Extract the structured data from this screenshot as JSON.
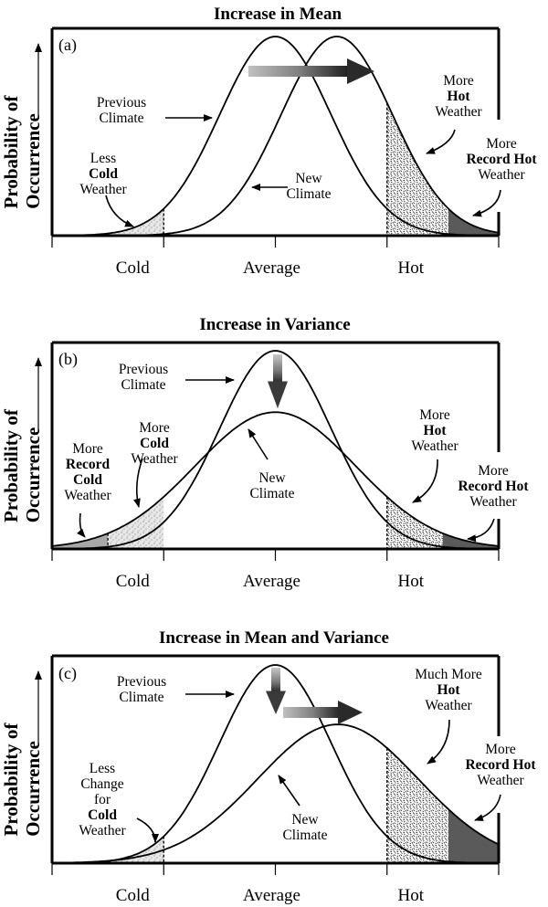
{
  "chart_data": [
    {
      "type": "line",
      "panel": "(a)",
      "title": "Increase in Mean",
      "xlabel": "",
      "ylabel": "Probability of Occurrence",
      "x_ticks": [
        "Cold",
        "Average",
        "Hot"
      ],
      "x_tick_values": [
        -1,
        0,
        1
      ],
      "xlim": [
        -2,
        2
      ],
      "series": [
        {
          "name": "Previous Climate",
          "mean": 0,
          "std": 0.5,
          "peak": 1.0
        },
        {
          "name": "New Climate",
          "mean": 0.55,
          "std": 0.5,
          "peak": 1.0
        }
      ],
      "shaded_regions": [
        {
          "name": "Less Cold Weather",
          "x_from": -2,
          "x_to": -1,
          "series": "Previous Climate",
          "fill": "stipple-light"
        },
        {
          "name": "More Hot Weather",
          "x_from": 1,
          "x_to": 1.55,
          "series": "New Climate",
          "fill": "stipple-dark"
        },
        {
          "name": "More Record Hot Weather",
          "x_from": 1.55,
          "x_to": 2,
          "series": "New Climate",
          "fill": "#5a5a5a"
        }
      ],
      "shift_arrow": {
        "direction": "right",
        "meaning": "mean increases"
      },
      "annotations": [
        {
          "lines": [
            {
              "t": "Previous"
            },
            {
              "t": "Climate"
            }
          ]
        },
        {
          "lines": [
            {
              "t": "Less"
            },
            {
              "t": "Cold",
              "bold": true
            },
            {
              "t": "Weather"
            }
          ]
        },
        {
          "lines": [
            {
              "t": "New"
            },
            {
              "t": "Climate"
            }
          ]
        },
        {
          "lines": [
            {
              "t": "More"
            },
            {
              "t": "Hot",
              "bold": true
            },
            {
              "t": "Weather"
            }
          ]
        },
        {
          "lines": [
            {
              "t": "More"
            },
            {
              "t": "Record Hot",
              "bold": true
            },
            {
              "t": "Weather"
            }
          ]
        }
      ]
    },
    {
      "type": "line",
      "panel": "(b)",
      "title": "Increase in Variance",
      "xlabel": "",
      "ylabel": "Probability of Occurrence",
      "x_ticks": [
        "Cold",
        "Average",
        "Hot"
      ],
      "x_tick_values": [
        -1,
        0,
        1
      ],
      "xlim": [
        -2,
        2
      ],
      "series": [
        {
          "name": "Previous Climate",
          "mean": 0,
          "std": 0.5,
          "peak": 1.0
        },
        {
          "name": "New Climate",
          "mean": 0,
          "std": 0.72,
          "peak": 0.69
        }
      ],
      "shaded_regions": [
        {
          "name": "More Record Cold Weather",
          "x_from": -2,
          "x_to": -1.5,
          "series": "New Climate",
          "fill": "#a8a8a8"
        },
        {
          "name": "More Cold Weather",
          "x_from": -1.5,
          "x_to": -1,
          "series": "New Climate",
          "fill": "stipple-light"
        },
        {
          "name": "More Hot Weather",
          "x_from": 1,
          "x_to": 1.5,
          "series": "New Climate",
          "fill": "stipple-dark"
        },
        {
          "name": "More Record Hot Weather",
          "x_from": 1.5,
          "x_to": 2,
          "series": "New Climate",
          "fill": "#5a5a5a"
        }
      ],
      "shift_arrow": {
        "direction": "down",
        "meaning": "peak flattens"
      },
      "annotations": [
        {
          "lines": [
            {
              "t": "Previous"
            },
            {
              "t": "Climate"
            }
          ]
        },
        {
          "lines": [
            {
              "t": "More"
            },
            {
              "t": "Record",
              "bold": true
            },
            {
              "t": "Cold",
              "bold": true
            },
            {
              "t": "Weather"
            }
          ]
        },
        {
          "lines": [
            {
              "t": "More"
            },
            {
              "t": "Cold",
              "bold": true
            },
            {
              "t": "Weather"
            }
          ]
        },
        {
          "lines": [
            {
              "t": "New"
            },
            {
              "t": "Climate"
            }
          ]
        },
        {
          "lines": [
            {
              "t": "More"
            },
            {
              "t": "Hot",
              "bold": true
            },
            {
              "t": "Weather"
            }
          ]
        },
        {
          "lines": [
            {
              "t": "More"
            },
            {
              "t": "Record Hot",
              "bold": true
            },
            {
              "t": "Weather"
            }
          ]
        }
      ]
    },
    {
      "type": "line",
      "panel": "(c)",
      "title": "Increase in Mean and Variance",
      "xlabel": "",
      "ylabel": "Probability of Occurrence",
      "x_ticks": [
        "Cold",
        "Average",
        "Hot"
      ],
      "x_tick_values": [
        -1,
        0,
        1
      ],
      "xlim": [
        -2,
        2
      ],
      "series": [
        {
          "name": "Previous Climate",
          "mean": 0,
          "std": 0.5,
          "peak": 1.0
        },
        {
          "name": "New Climate",
          "mean": 0.56,
          "std": 0.72,
          "peak": 0.7
        }
      ],
      "shaded_regions": [
        {
          "name": "Less Change for Cold Weather",
          "x_from": -2,
          "x_to": -1,
          "series": "Previous Climate",
          "fill": "stipple-light"
        },
        {
          "name": "Much More Hot Weather",
          "x_from": 1,
          "x_to": 1.55,
          "series": "New Climate",
          "fill": "stipple-dark"
        },
        {
          "name": "More Record Hot Weather",
          "x_from": 1.55,
          "x_to": 2,
          "series": "New Climate",
          "fill": "#5a5a5a"
        }
      ],
      "shift_arrow": {
        "direction": "down-and-right",
        "meaning": "mean increases and peak flattens"
      },
      "annotations": [
        {
          "lines": [
            {
              "t": "Previous"
            },
            {
              "t": "Climate"
            }
          ]
        },
        {
          "lines": [
            {
              "t": "Less"
            },
            {
              "t": "Change"
            },
            {
              "t": "for"
            },
            {
              "t": "Cold",
              "bold": true
            },
            {
              "t": "Weather"
            }
          ]
        },
        {
          "lines": [
            {
              "t": "New"
            },
            {
              "t": "Climate"
            }
          ]
        },
        {
          "lines": [
            {
              "t": "Much More"
            },
            {
              "t": "Hot",
              "bold": true
            },
            {
              "t": "Weather"
            }
          ]
        },
        {
          "lines": [
            {
              "t": "More"
            },
            {
              "t": "Record Hot",
              "bold": true
            },
            {
              "t": "Weather"
            }
          ]
        }
      ]
    }
  ],
  "colors": {
    "line": "#000000",
    "record_hot_fill": "#5a5a5a",
    "record_cold_fill": "#a8a8a8",
    "arrow_light": "#b8b8b8",
    "arrow_dark": "#2a2a2a"
  }
}
